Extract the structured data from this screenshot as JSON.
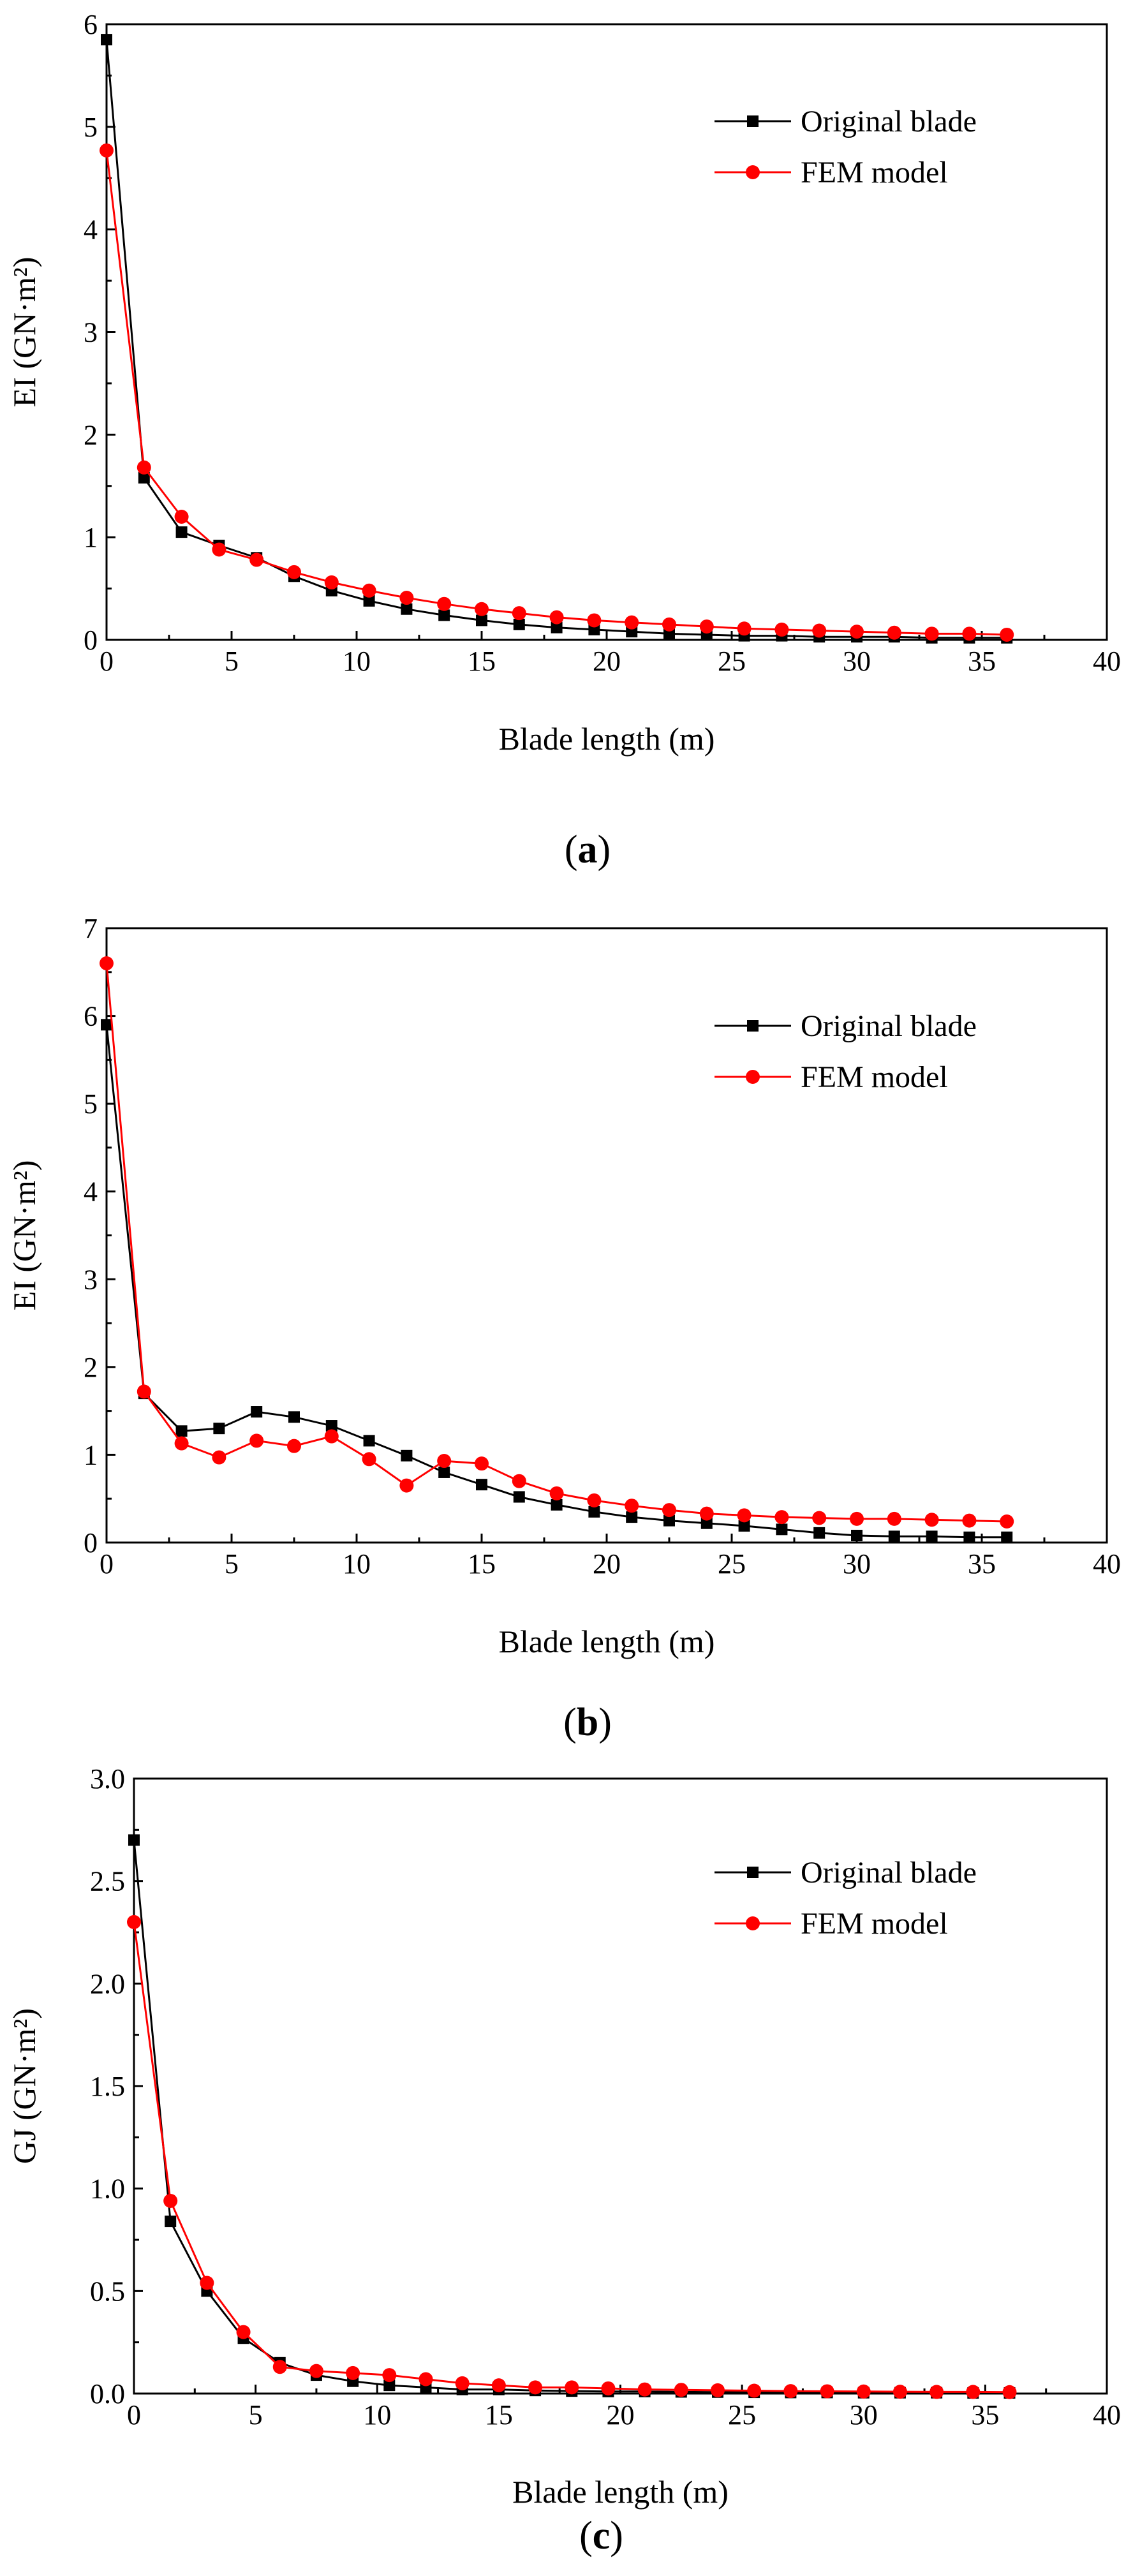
{
  "chart_data": [
    {
      "type": "line",
      "caption_letter": "a",
      "ylabel": "EI (GN·m²)",
      "xlabel": "Blade length (m)",
      "xlim": [
        0,
        40
      ],
      "ylim": [
        0,
        6
      ],
      "xticks": [
        0,
        5,
        10,
        15,
        20,
        25,
        30,
        35,
        40
      ],
      "yticks": [
        0,
        1,
        2,
        3,
        4,
        5,
        6
      ],
      "legend_position": "top-right",
      "x": [
        0,
        1.5,
        3,
        4.5,
        6,
        7.5,
        9,
        10.5,
        12,
        13.5,
        15,
        16.5,
        18,
        19.5,
        21,
        22.5,
        24,
        25.5,
        27,
        28.5,
        30,
        31.5,
        33,
        34.5,
        36
      ],
      "series": [
        {
          "name": "Original blade",
          "color": "#000000",
          "marker": "square",
          "values": [
            5.85,
            1.58,
            1.05,
            0.92,
            0.8,
            0.62,
            0.48,
            0.38,
            0.3,
            0.24,
            0.19,
            0.15,
            0.12,
            0.1,
            0.08,
            0.06,
            0.05,
            0.04,
            0.04,
            0.03,
            0.03,
            0.03,
            0.02,
            0.02,
            0.02
          ]
        },
        {
          "name": "FEM model",
          "color": "#ff0000",
          "marker": "circle",
          "values": [
            4.77,
            1.68,
            1.2,
            0.88,
            0.78,
            0.66,
            0.56,
            0.48,
            0.41,
            0.35,
            0.3,
            0.26,
            0.22,
            0.19,
            0.17,
            0.15,
            0.13,
            0.11,
            0.1,
            0.09,
            0.08,
            0.07,
            0.06,
            0.06,
            0.05
          ]
        }
      ]
    },
    {
      "type": "line",
      "caption_letter": "b",
      "ylabel": "EI (GN·m²)",
      "xlabel": "Blade length (m)",
      "xlim": [
        0,
        40
      ],
      "ylim": [
        0,
        7
      ],
      "xticks": [
        0,
        5,
        10,
        15,
        20,
        25,
        30,
        35,
        40
      ],
      "yticks": [
        0,
        1,
        2,
        3,
        4,
        5,
        6,
        7
      ],
      "legend_position": "top-right",
      "x": [
        0,
        1.5,
        3,
        4.5,
        6,
        7.5,
        9,
        10.5,
        12,
        13.5,
        15,
        16.5,
        18,
        19.5,
        21,
        22.5,
        24,
        25.5,
        27,
        28.5,
        30,
        31.5,
        33,
        34.5,
        36
      ],
      "series": [
        {
          "name": "Original blade",
          "color": "#000000",
          "marker": "square",
          "values": [
            5.9,
            1.7,
            1.27,
            1.3,
            1.49,
            1.43,
            1.33,
            1.16,
            0.99,
            0.8,
            0.66,
            0.52,
            0.43,
            0.35,
            0.29,
            0.25,
            0.22,
            0.19,
            0.15,
            0.11,
            0.08,
            0.07,
            0.07,
            0.06,
            0.06
          ]
        },
        {
          "name": "FEM model",
          "color": "#ff0000",
          "marker": "circle",
          "values": [
            6.6,
            1.72,
            1.13,
            0.97,
            1.16,
            1.1,
            1.21,
            0.95,
            0.65,
            0.93,
            0.9,
            0.7,
            0.56,
            0.48,
            0.42,
            0.37,
            0.33,
            0.31,
            0.29,
            0.28,
            0.27,
            0.27,
            0.26,
            0.25,
            0.24
          ]
        }
      ]
    },
    {
      "type": "line",
      "caption_letter": "c",
      "ylabel": "GJ (GN·m²)",
      "xlabel": "Blade length (m)",
      "xlim": [
        0,
        40
      ],
      "ylim": [
        0,
        3.0
      ],
      "xticks": [
        0,
        5,
        10,
        15,
        20,
        25,
        30,
        35,
        40
      ],
      "yticks": [
        0.0,
        0.5,
        1.0,
        1.5,
        2.0,
        2.5,
        3.0
      ],
      "ytick_decimals": 1,
      "legend_position": "top-right",
      "x": [
        0,
        1.5,
        3,
        4.5,
        6,
        7.5,
        9,
        10.5,
        12,
        13.5,
        15,
        16.5,
        18,
        19.5,
        21,
        22.5,
        24,
        25.5,
        27,
        28.5,
        30,
        31.5,
        33,
        34.5,
        36
      ],
      "series": [
        {
          "name": "Original blade",
          "color": "#000000",
          "marker": "square",
          "values": [
            2.7,
            0.84,
            0.5,
            0.27,
            0.15,
            0.09,
            0.06,
            0.04,
            0.03,
            0.02,
            0.02,
            0.015,
            0.012,
            0.01,
            0.01,
            0.008,
            0.007,
            0.006,
            0.005,
            0.005,
            0.004,
            0.004,
            0.004,
            0.003,
            0.003
          ]
        },
        {
          "name": "FEM model",
          "color": "#ff0000",
          "marker": "circle",
          "values": [
            2.3,
            0.94,
            0.54,
            0.3,
            0.13,
            0.11,
            0.1,
            0.09,
            0.07,
            0.05,
            0.04,
            0.03,
            0.03,
            0.025,
            0.02,
            0.018,
            0.016,
            0.014,
            0.012,
            0.011,
            0.01,
            0.009,
            0.008,
            0.008,
            0.007
          ]
        }
      ]
    }
  ]
}
